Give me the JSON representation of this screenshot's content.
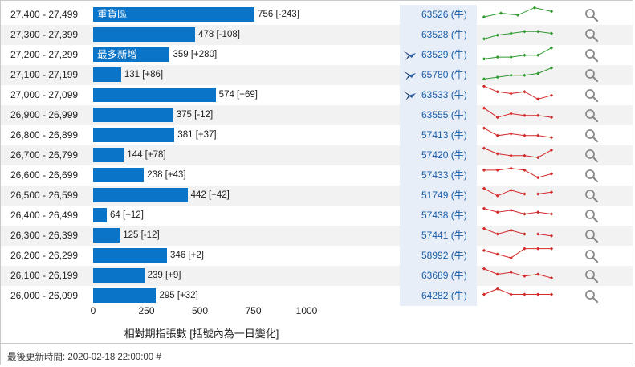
{
  "chart_data": {
    "type": "bar",
    "xlabel": "相對期指張數 [括號內為一日變化]",
    "xlim": [
      0,
      1000
    ],
    "ticks": [
      "0",
      "250",
      "500",
      "750",
      "1000"
    ],
    "rows": [
      {
        "range": "27,400 - 27,499",
        "value": 756,
        "label": "756 [-243]",
        "tag": "重貨區",
        "code": "63526 (牛)",
        "flag": false,
        "trend": "up",
        "spark": [
          3,
          5,
          4,
          8,
          6
        ]
      },
      {
        "range": "27,300 - 27,399",
        "value": 478,
        "label": "478 [-108]",
        "tag": "",
        "code": "63528 (牛)",
        "flag": false,
        "trend": "up",
        "spark": [
          2,
          4,
          5,
          6,
          6,
          5
        ]
      },
      {
        "range": "27,200 - 27,299",
        "value": 359,
        "label": "359 [+280]",
        "tag": "最多新增",
        "code": "63529 (牛)",
        "flag": true,
        "trend": "up",
        "spark": [
          2,
          3,
          3,
          4,
          4,
          8
        ]
      },
      {
        "range": "27,100 - 27,199",
        "value": 131,
        "label": "131 [+86]",
        "tag": "",
        "code": "65780 (牛)",
        "flag": true,
        "trend": "up",
        "spark": [
          2,
          3,
          4,
          4,
          5,
          8
        ]
      },
      {
        "range": "27,000 - 27,099",
        "value": 574,
        "label": "574 [+69]",
        "tag": "",
        "code": "63533 (牛)",
        "flag": true,
        "trend": "down",
        "spark": [
          9,
          6,
          5,
          6,
          2,
          4
        ]
      },
      {
        "range": "26,900 - 26,999",
        "value": 375,
        "label": "375 [-12]",
        "tag": "",
        "code": "63555 (牛)",
        "flag": false,
        "trend": "down",
        "spark": [
          8,
          3,
          5,
          4,
          4,
          3
        ]
      },
      {
        "range": "26,800 - 26,899",
        "value": 381,
        "label": "381 [+37]",
        "tag": "",
        "code": "57413 (牛)",
        "flag": false,
        "trend": "down",
        "spark": [
          8,
          4,
          5,
          4,
          4,
          3
        ]
      },
      {
        "range": "26,700 - 26,799",
        "value": 144,
        "label": "144 [+78]",
        "tag": "",
        "code": "57420 (牛)",
        "flag": false,
        "trend": "down",
        "spark": [
          8,
          5,
          4,
          4,
          3,
          7
        ]
      },
      {
        "range": "26,600 - 26,699",
        "value": 238,
        "label": "238 [+43]",
        "tag": "",
        "code": "57433 (牛)",
        "flag": false,
        "trend": "down",
        "spark": [
          7,
          7,
          8,
          7,
          3,
          5
        ]
      },
      {
        "range": "26,500 - 26,599",
        "value": 442,
        "label": "442 [+42]",
        "tag": "",
        "code": "51749 (牛)",
        "flag": false,
        "trend": "down",
        "spark": [
          8,
          4,
          7,
          5,
          5,
          6
        ]
      },
      {
        "range": "26,400 - 26,499",
        "value": 64,
        "label": "64 [+12]",
        "tag": "",
        "code": "57438 (牛)",
        "flag": false,
        "trend": "down",
        "spark": [
          8,
          6,
          7,
          5,
          6,
          5
        ]
      },
      {
        "range": "26,300 - 26,399",
        "value": 125,
        "label": "125 [-12]",
        "tag": "",
        "code": "57441 (牛)",
        "flag": false,
        "trend": "down",
        "spark": [
          8,
          5,
          7,
          5,
          5,
          4
        ]
      },
      {
        "range": "26,200 - 26,299",
        "value": 346,
        "label": "346 [+2]",
        "tag": "",
        "code": "58992 (牛)",
        "flag": false,
        "trend": "down",
        "spark": [
          7,
          5,
          3,
          8,
          8,
          8
        ]
      },
      {
        "range": "26,100 - 26,199",
        "value": 239,
        "label": "239 [+9]",
        "tag": "",
        "code": "63689 (牛)",
        "flag": false,
        "trend": "down",
        "spark": [
          8,
          5,
          6,
          4,
          5,
          3
        ]
      },
      {
        "range": "26,000 - 26,099",
        "value": 295,
        "label": "295 [+32]",
        "tag": "",
        "code": "64282 (牛)",
        "flag": false,
        "trend": "down",
        "spark": [
          5,
          8,
          5,
          5,
          5,
          5
        ]
      }
    ]
  },
  "footer": {
    "text": "最後更新時間: 2020-02-18 22:00:00 #"
  },
  "colors": {
    "bar": "#0a74c9",
    "up": "#2e9b2e",
    "down": "#d42a2a",
    "code": "#1a5da8"
  },
  "icons": {
    "flag": "bull-flag-icon",
    "detail": "magnifier-icon"
  }
}
